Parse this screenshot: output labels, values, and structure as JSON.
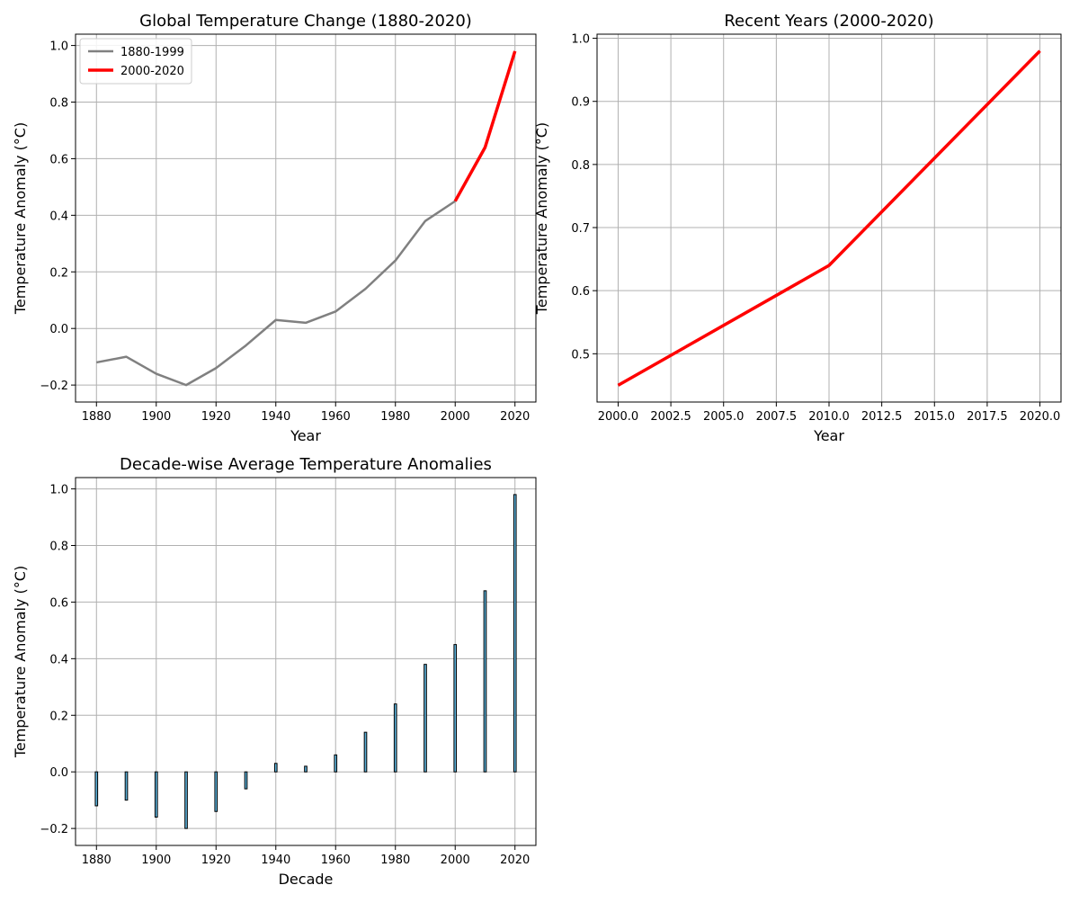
{
  "chart_data": [
    {
      "type": "line",
      "title": "Global Temperature Change (1880-2020)",
      "xlabel": "Year",
      "ylabel": "Temperature Anomaly (°C)",
      "xlim": [
        1873,
        2027
      ],
      "ylim": [
        -0.26,
        1.04
      ],
      "xticks": [
        1880,
        1900,
        1920,
        1940,
        1960,
        1980,
        2000,
        2020
      ],
      "yticks": [
        -0.2,
        0.0,
        0.2,
        0.4,
        0.6,
        0.8,
        1.0
      ],
      "ytick_labels": [
        "−0.2",
        "0.0",
        "0.2",
        "0.4",
        "0.6",
        "0.8",
        "1.0"
      ],
      "xtick_labels": [
        "1880",
        "1900",
        "1920",
        "1940",
        "1960",
        "1980",
        "2000",
        "2020"
      ],
      "grid": true,
      "legend": "upper-left",
      "series": [
        {
          "name": "1880-1999",
          "color": "#808080",
          "x": [
            1880,
            1890,
            1900,
            1910,
            1920,
            1930,
            1940,
            1950,
            1960,
            1970,
            1980,
            1990,
            2000
          ],
          "y": [
            -0.12,
            -0.1,
            -0.16,
            -0.2,
            -0.14,
            -0.06,
            0.03,
            0.02,
            0.06,
            0.14,
            0.24,
            0.38,
            0.45
          ]
        },
        {
          "name": "2000-2020",
          "color": "#ff0000",
          "x": [
            2000,
            2010,
            2020
          ],
          "y": [
            0.45,
            0.64,
            0.98
          ]
        }
      ]
    },
    {
      "type": "line",
      "title": "Recent Years (2000-2020)",
      "xlabel": "Year",
      "ylabel": "Temperature Anomaly (°C)",
      "xlim": [
        1999.0,
        2021.0
      ],
      "ylim": [
        0.4235,
        1.0065
      ],
      "xticks": [
        2000.0,
        2002.5,
        2005.0,
        2007.5,
        2010.0,
        2012.5,
        2015.0,
        2017.5,
        2020.0
      ],
      "xtick_labels": [
        "2000.0",
        "2002.5",
        "2005.0",
        "2007.5",
        "2010.0",
        "2012.5",
        "2015.0",
        "2017.5",
        "2020.0"
      ],
      "yticks": [
        0.5,
        0.6,
        0.7,
        0.8,
        0.9,
        1.0
      ],
      "ytick_labels": [
        "0.5",
        "0.6",
        "0.7",
        "0.8",
        "0.9",
        "1.0"
      ],
      "grid": true,
      "series": [
        {
          "color": "#ff0000",
          "x": [
            2000,
            2010,
            2020
          ],
          "y": [
            0.45,
            0.64,
            0.98
          ]
        }
      ]
    },
    {
      "type": "bar",
      "title": "Decade-wise Average Temperature Anomalies",
      "xlabel": "Decade",
      "ylabel": "Temperature Anomaly (°C)",
      "xlim": [
        1873,
        2027
      ],
      "ylim": [
        -0.26,
        1.04
      ],
      "xticks": [
        1880,
        1900,
        1920,
        1940,
        1960,
        1980,
        2000,
        2020
      ],
      "xtick_labels": [
        "1880",
        "1900",
        "1920",
        "1940",
        "1960",
        "1980",
        "2000",
        "2020"
      ],
      "yticks": [
        -0.2,
        0.0,
        0.2,
        0.4,
        0.6,
        0.8,
        1.0
      ],
      "ytick_labels": [
        "−0.2",
        "0.0",
        "0.2",
        "0.4",
        "0.6",
        "0.8",
        "1.0"
      ],
      "grid": true,
      "bar_color": "#5aaed6",
      "edge_color": "#000000",
      "categories": [
        1880,
        1890,
        1900,
        1910,
        1920,
        1930,
        1940,
        1950,
        1960,
        1970,
        1980,
        1990,
        2000,
        2010,
        2020
      ],
      "values": [
        -0.12,
        -0.1,
        -0.16,
        -0.2,
        -0.14,
        -0.06,
        0.03,
        0.02,
        0.06,
        0.14,
        0.24,
        0.38,
        0.45,
        0.64,
        0.98
      ]
    }
  ]
}
